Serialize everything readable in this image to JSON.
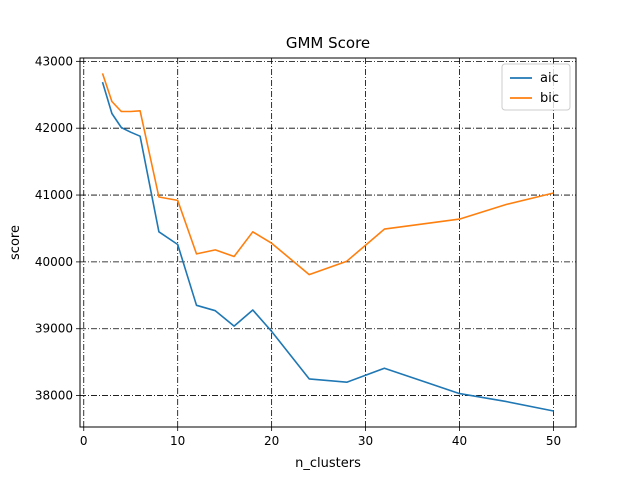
{
  "chart_data": {
    "type": "line",
    "title": "GMM Score",
    "xlabel": "n_clusters",
    "ylabel": "score",
    "xlim": [
      -0.4,
      52.4
    ],
    "ylim": [
      37530,
      43050
    ],
    "x_ticks": [
      0,
      10,
      20,
      30,
      40,
      50
    ],
    "y_ticks": [
      38000,
      39000,
      40000,
      41000,
      42000,
      43000
    ],
    "grid": true,
    "legend_position": "top-right",
    "series": [
      {
        "name": "aic",
        "color": "#1f77b4",
        "x": [
          2,
          3,
          4,
          5,
          6,
          8,
          10,
          12,
          14,
          16,
          18,
          20,
          24,
          28,
          32,
          40,
          45,
          50
        ],
        "y": [
          42690,
          42220,
          42010,
          41940,
          41880,
          40450,
          40260,
          39350,
          39270,
          39040,
          39280,
          38960,
          38250,
          38200,
          38410,
          38030,
          37910,
          37770
        ]
      },
      {
        "name": "bic",
        "color": "#ff7f0e",
        "x": [
          2,
          3,
          4,
          5,
          6,
          8,
          10,
          12,
          14,
          16,
          18,
          20,
          24,
          28,
          32,
          40,
          45,
          50
        ],
        "y": [
          42820,
          42400,
          42250,
          42250,
          42260,
          40970,
          40920,
          40120,
          40180,
          40080,
          40450,
          40280,
          39810,
          40010,
          40490,
          40640,
          40860,
          41030
        ]
      }
    ]
  }
}
